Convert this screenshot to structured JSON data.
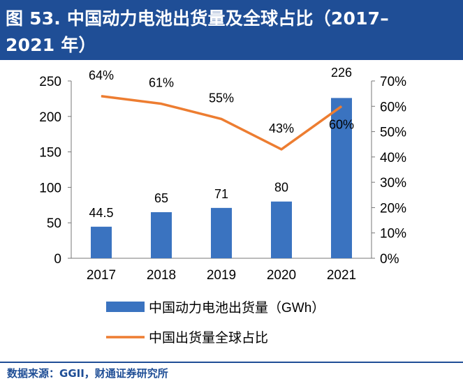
{
  "header": {
    "title_line1": "图 53. 中国动力电池出货量及全球占比（2017–",
    "title_line2": "2021 年）"
  },
  "footer": {
    "source": "数据来源：GGII，财通证券研究所"
  },
  "colors": {
    "header_bg": "#1f4e96",
    "bar": "#3a73c0",
    "line": "#ed7d31"
  },
  "chart_data": {
    "type": "bar",
    "title": "",
    "categories": [
      "2017",
      "2018",
      "2019",
      "2020",
      "2021"
    ],
    "series": [
      {
        "name": "中国动力电池出货量（GWh）",
        "type": "bar",
        "axis": "left",
        "values": [
          44.5,
          65,
          71,
          80,
          226
        ],
        "labels": [
          "44.5",
          "65",
          "71",
          "80",
          "226"
        ]
      },
      {
        "name": "中国出货量全球占比",
        "type": "line",
        "axis": "right",
        "values": [
          0.64,
          0.61,
          0.55,
          0.43,
          0.6
        ],
        "labels": [
          "64%",
          "61%",
          "55%",
          "43%",
          "60%"
        ]
      }
    ],
    "left_axis": {
      "min": 0,
      "max": 250,
      "ticks": [
        "0",
        "50",
        "100",
        "150",
        "200",
        "250"
      ]
    },
    "right_axis": {
      "min": 0,
      "max": 0.7,
      "ticks": [
        "0%",
        "10%",
        "20%",
        "30%",
        "40%",
        "50%",
        "60%",
        "70%"
      ]
    },
    "grid": false,
    "legend_position": "bottom"
  }
}
